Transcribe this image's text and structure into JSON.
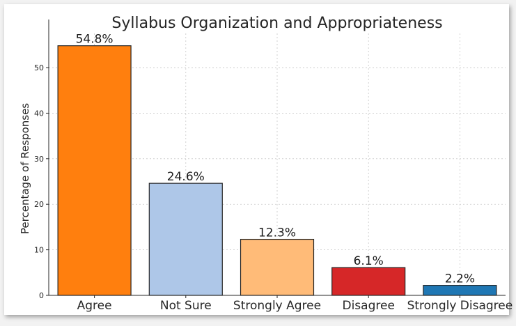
{
  "chart_data": {
    "type": "bar",
    "title": "Syllabus Organization and Appropriateness",
    "xlabel": "",
    "ylabel": "Percentage of Responses",
    "categories": [
      "Agree",
      "Not Sure",
      "Strongly Agree",
      "Disagree",
      "Strongly Disagree"
    ],
    "values": [
      54.8,
      24.6,
      12.3,
      6.1,
      2.2
    ],
    "data_labels": [
      "54.8%",
      "24.6%",
      "12.3%",
      "6.1%",
      "2.2%"
    ],
    "colors": [
      "#ff7f0e",
      "#aec7e8",
      "#ffbb78",
      "#d62728",
      "#1f77b4"
    ],
    "yticks": [
      0,
      10,
      20,
      30,
      40,
      50
    ],
    "ylim": [
      0,
      57.5
    ],
    "grid": true,
    "legend": "none"
  }
}
